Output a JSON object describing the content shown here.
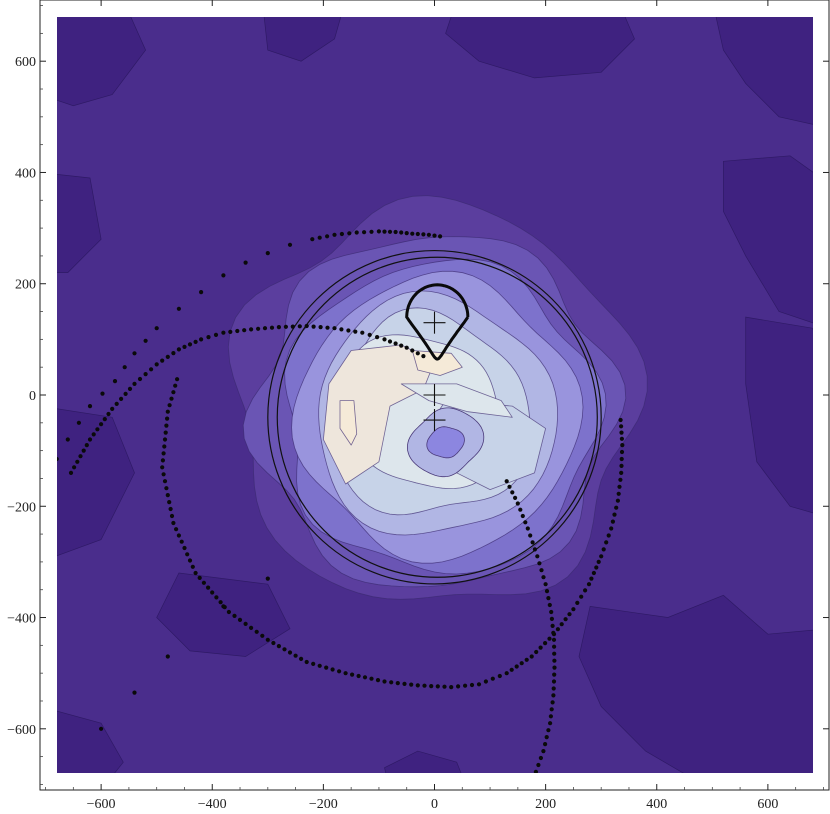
{
  "chart_data": {
    "type": "contour",
    "title": "",
    "xlabel": "",
    "ylabel": "",
    "xlim": [
      -710,
      710
    ],
    "ylim": [
      -710,
      710
    ],
    "xticks": [
      -600,
      -400,
      -200,
      0,
      200,
      400,
      600
    ],
    "yticks": [
      -600,
      -400,
      -200,
      0,
      200,
      400,
      600
    ],
    "xtick_labels": [
      "−600",
      "−400",
      "−200",
      "0",
      "200",
      "400",
      "600"
    ],
    "ytick_labels": [
      "−600",
      "−400",
      "−200",
      "0",
      "200",
      "400",
      "600"
    ],
    "background_color": "#4a2d8c",
    "contour_colors": [
      "#4a2d8c",
      "#5b3e9e",
      "#6a55b4",
      "#7d72cc",
      "#9994dd",
      "#b1b6e4",
      "#c7d3e8",
      "#dde6ec",
      "#eee6dc",
      "#f5ead8"
    ],
    "dark_patch_color": "#3f2280",
    "hole_color": "#8c86e0",
    "circles": [
      {
        "cx": 0,
        "cy": -40,
        "r": 300
      },
      {
        "cx": 5,
        "cy": -40,
        "r": 288
      }
    ],
    "crosshairs": [
      {
        "x": 0,
        "y": 130
      },
      {
        "x": 0,
        "y": 0
      },
      {
        "x": 0,
        "y": -45
      }
    ],
    "loop_track": {
      "cx": 5,
      "cy": 140,
      "rx": 55,
      "ry": 58
    },
    "tracks": [
      {
        "name": "",
        "points": [
          [
            10,
            285
          ],
          [
            -10,
            288
          ],
          [
            -40,
            290
          ],
          [
            -70,
            293
          ],
          [
            -100,
            294
          ],
          [
            -140,
            292
          ],
          [
            -180,
            288
          ],
          [
            -220,
            280
          ],
          [
            -260,
            270
          ],
          [
            -300,
            255
          ],
          [
            -340,
            238
          ],
          [
            -380,
            215
          ],
          [
            -420,
            185
          ],
          [
            -460,
            155
          ],
          [
            -500,
            120
          ],
          [
            -540,
            75
          ],
          [
            -575,
            25
          ],
          [
            -620,
            -20
          ],
          [
            -660,
            -80
          ],
          [
            -700,
            -150
          ]
        ]
      },
      {
        "name": "",
        "points": [
          [
            -20,
            70
          ],
          [
            -50,
            85
          ],
          [
            -90,
            100
          ],
          [
            -130,
            112
          ],
          [
            -180,
            120
          ],
          [
            -230,
            124
          ],
          [
            -280,
            122
          ],
          [
            -330,
            118
          ],
          [
            -380,
            112
          ],
          [
            -420,
            100
          ],
          [
            -460,
            82
          ],
          [
            -500,
            55
          ],
          [
            -540,
            20
          ],
          [
            -580,
            -25
          ],
          [
            -620,
            -80
          ],
          [
            -660,
            -150
          ]
        ]
      },
      {
        "name": "",
        "points": [
          [
            335,
            -45
          ],
          [
            338,
            -90
          ],
          [
            336,
            -140
          ],
          [
            330,
            -190
          ],
          [
            318,
            -240
          ],
          [
            300,
            -290
          ],
          [
            278,
            -340
          ],
          [
            250,
            -385
          ],
          [
            215,
            -430
          ],
          [
            175,
            -470
          ],
          [
            130,
            -500
          ],
          [
            80,
            -520
          ],
          [
            30,
            -525
          ],
          [
            -30,
            -522
          ],
          [
            -90,
            -515
          ],
          [
            -160,
            -500
          ],
          [
            -230,
            -480
          ],
          [
            -300,
            -440
          ],
          [
            -370,
            -390
          ],
          [
            -430,
            -320
          ],
          [
            -470,
            -230
          ],
          [
            -490,
            -130
          ],
          [
            -480,
            -30
          ],
          [
            -460,
            40
          ]
        ]
      },
      {
        "name": "",
        "points": [
          [
            130,
            -155
          ],
          [
            150,
            -195
          ],
          [
            168,
            -240
          ],
          [
            185,
            -290
          ],
          [
            200,
            -340
          ],
          [
            210,
            -390
          ],
          [
            215,
            -440
          ],
          [
            216,
            -490
          ],
          [
            214,
            -540
          ],
          [
            208,
            -590
          ],
          [
            196,
            -640
          ],
          [
            178,
            -690
          ],
          [
            160,
            -720
          ]
        ]
      },
      {
        "name": "",
        "points": [
          [
            -690,
            -700
          ],
          [
            -600,
            -600
          ],
          [
            -480,
            -470
          ],
          [
            -380,
            -380
          ],
          [
            -300,
            -330
          ],
          [
            -240,
            -310
          ]
        ]
      }
    ]
  }
}
